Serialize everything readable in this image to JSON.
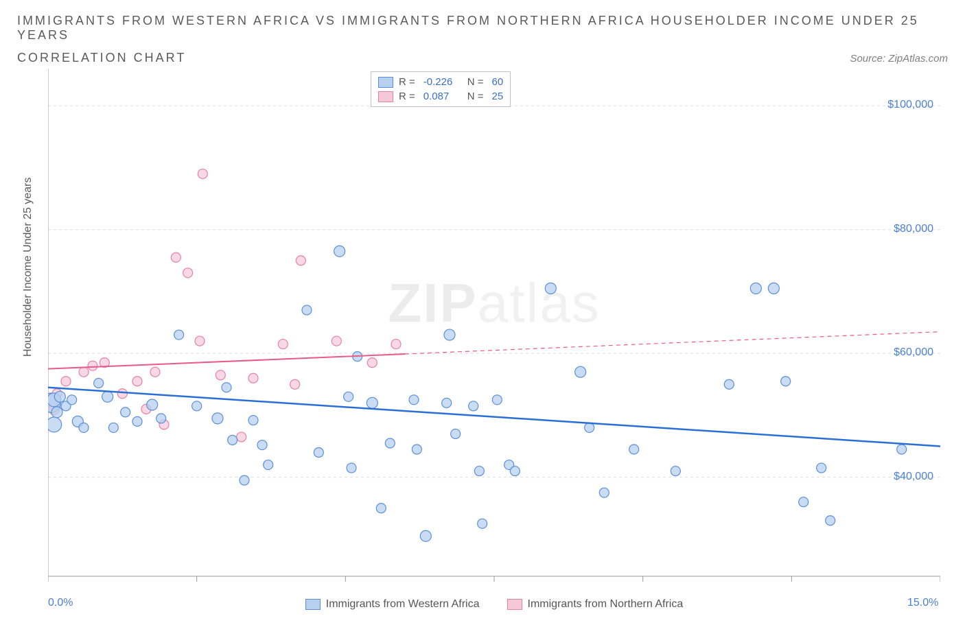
{
  "title_line1": "IMMIGRANTS FROM WESTERN AFRICA VS IMMIGRANTS FROM NORTHERN AFRICA HOUSEHOLDER INCOME UNDER 25 YEARS",
  "title_line2": "CORRELATION CHART",
  "source_label": "Source: ZipAtlas.com",
  "ylabel": "Householder Income Under 25 years",
  "watermark": {
    "bold": "ZIP",
    "rest": "atlas"
  },
  "chart": {
    "type": "scatter",
    "background_color": "#ffffff",
    "grid_color": "#dcdcdc",
    "axis_color": "#999999",
    "xlim": [
      0,
      15
    ],
    "ylim": [
      24000,
      106000
    ],
    "xtick_positions": [
      0,
      2.5,
      5,
      7.5,
      10,
      12.5,
      15
    ],
    "xtick_labels": {
      "0": "0.0%",
      "15": "15.0%"
    },
    "ytick_positions": [
      40000,
      60000,
      80000,
      100000
    ],
    "ytick_labels": [
      "$40,000",
      "$60,000",
      "$80,000",
      "$100,000"
    ],
    "gridline_dash": "4,4",
    "series": {
      "western": {
        "label": "Immigrants from Western Africa",
        "fill": "#b8d0f0",
        "stroke": "#5a8fd8",
        "stroke_width": 1.2,
        "opacity": 0.75,
        "line_color": "#2a6fd6",
        "line_width": 2.5,
        "line_solid_to_x": 15,
        "R": "-0.226",
        "N": "60",
        "regression": {
          "x1": 0,
          "y1": 54500,
          "x2": 15,
          "y2": 45000
        },
        "points": [
          {
            "x": 0.05,
            "y": 52000,
            "r": 14
          },
          {
            "x": 0.1,
            "y": 48500,
            "r": 11
          },
          {
            "x": 0.1,
            "y": 52500,
            "r": 10
          },
          {
            "x": 0.15,
            "y": 50500,
            "r": 8
          },
          {
            "x": 0.2,
            "y": 53000,
            "r": 8
          },
          {
            "x": 0.3,
            "y": 51500,
            "r": 7
          },
          {
            "x": 0.4,
            "y": 52500,
            "r": 7
          },
          {
            "x": 0.5,
            "y": 49000,
            "r": 8
          },
          {
            "x": 0.6,
            "y": 48000,
            "r": 7
          },
          {
            "x": 0.85,
            "y": 55200,
            "r": 7
          },
          {
            "x": 1.0,
            "y": 53000,
            "r": 8
          },
          {
            "x": 1.1,
            "y": 48000,
            "r": 7
          },
          {
            "x": 1.3,
            "y": 50500,
            "r": 7
          },
          {
            "x": 1.5,
            "y": 49000,
            "r": 7
          },
          {
            "x": 1.75,
            "y": 51700,
            "r": 8
          },
          {
            "x": 1.9,
            "y": 49500,
            "r": 7
          },
          {
            "x": 2.2,
            "y": 63000,
            "r": 7
          },
          {
            "x": 2.5,
            "y": 51500,
            "r": 7
          },
          {
            "x": 2.85,
            "y": 49500,
            "r": 8
          },
          {
            "x": 3.0,
            "y": 54500,
            "r": 7
          },
          {
            "x": 3.1,
            "y": 46000,
            "r": 7
          },
          {
            "x": 3.3,
            "y": 39500,
            "r": 7
          },
          {
            "x": 3.45,
            "y": 49200,
            "r": 7
          },
          {
            "x": 3.6,
            "y": 45200,
            "r": 7
          },
          {
            "x": 3.7,
            "y": 42000,
            "r": 7
          },
          {
            "x": 4.35,
            "y": 67000,
            "r": 7
          },
          {
            "x": 4.55,
            "y": 44000,
            "r": 7
          },
          {
            "x": 4.9,
            "y": 76500,
            "r": 8
          },
          {
            "x": 5.05,
            "y": 53000,
            "r": 7
          },
          {
            "x": 5.1,
            "y": 41500,
            "r": 7
          },
          {
            "x": 5.2,
            "y": 59500,
            "r": 7
          },
          {
            "x": 5.45,
            "y": 52000,
            "r": 8
          },
          {
            "x": 5.6,
            "y": 35000,
            "r": 7
          },
          {
            "x": 5.75,
            "y": 45500,
            "r": 7
          },
          {
            "x": 6.15,
            "y": 52500,
            "r": 7
          },
          {
            "x": 6.2,
            "y": 44500,
            "r": 7
          },
          {
            "x": 6.35,
            "y": 30500,
            "r": 8
          },
          {
            "x": 6.7,
            "y": 52000,
            "r": 7
          },
          {
            "x": 6.75,
            "y": 63000,
            "r": 8
          },
          {
            "x": 6.85,
            "y": 47000,
            "r": 7
          },
          {
            "x": 7.15,
            "y": 51500,
            "r": 7
          },
          {
            "x": 7.25,
            "y": 41000,
            "r": 7
          },
          {
            "x": 7.3,
            "y": 32500,
            "r": 7
          },
          {
            "x": 7.55,
            "y": 52500,
            "r": 7
          },
          {
            "x": 7.75,
            "y": 42000,
            "r": 7
          },
          {
            "x": 7.85,
            "y": 41000,
            "r": 7
          },
          {
            "x": 8.45,
            "y": 70500,
            "r": 8
          },
          {
            "x": 8.95,
            "y": 57000,
            "r": 8
          },
          {
            "x": 9.1,
            "y": 48000,
            "r": 7
          },
          {
            "x": 9.35,
            "y": 37500,
            "r": 7
          },
          {
            "x": 9.85,
            "y": 44500,
            "r": 7
          },
          {
            "x": 10.55,
            "y": 41000,
            "r": 7
          },
          {
            "x": 11.45,
            "y": 55000,
            "r": 7
          },
          {
            "x": 11.9,
            "y": 70500,
            "r": 8
          },
          {
            "x": 12.2,
            "y": 70500,
            "r": 8
          },
          {
            "x": 12.4,
            "y": 55500,
            "r": 7
          },
          {
            "x": 12.7,
            "y": 36000,
            "r": 7
          },
          {
            "x": 13.0,
            "y": 41500,
            "r": 7
          },
          {
            "x": 13.15,
            "y": 33000,
            "r": 7
          },
          {
            "x": 14.35,
            "y": 44500,
            "r": 7
          }
        ]
      },
      "northern": {
        "label": "Immigrants from Northern Africa",
        "fill": "#f5c8d8",
        "stroke": "#e681a5",
        "stroke_width": 1.2,
        "opacity": 0.7,
        "line_color": "#e85a8a",
        "line_width": 2,
        "line_solid_to_x": 6.0,
        "line_dash": "6,5",
        "R": "0.087",
        "N": "25",
        "regression": {
          "x1": 0,
          "y1": 57500,
          "x2": 15,
          "y2": 63500
        },
        "points": [
          {
            "x": 0.05,
            "y": 52500,
            "r": 10
          },
          {
            "x": 0.1,
            "y": 51000,
            "r": 8
          },
          {
            "x": 0.15,
            "y": 53500,
            "r": 7
          },
          {
            "x": 0.3,
            "y": 55500,
            "r": 7
          },
          {
            "x": 0.6,
            "y": 57000,
            "r": 7
          },
          {
            "x": 0.75,
            "y": 58000,
            "r": 7
          },
          {
            "x": 0.95,
            "y": 58500,
            "r": 7
          },
          {
            "x": 1.25,
            "y": 53500,
            "r": 7
          },
          {
            "x": 1.5,
            "y": 55500,
            "r": 7
          },
          {
            "x": 1.65,
            "y": 51000,
            "r": 7
          },
          {
            "x": 1.8,
            "y": 57000,
            "r": 7
          },
          {
            "x": 1.95,
            "y": 48500,
            "r": 7
          },
          {
            "x": 2.15,
            "y": 75500,
            "r": 7
          },
          {
            "x": 2.35,
            "y": 73000,
            "r": 7
          },
          {
            "x": 2.55,
            "y": 62000,
            "r": 7
          },
          {
            "x": 2.6,
            "y": 89000,
            "r": 7
          },
          {
            "x": 2.9,
            "y": 56500,
            "r": 7
          },
          {
            "x": 3.25,
            "y": 46500,
            "r": 7
          },
          {
            "x": 3.45,
            "y": 56000,
            "r": 7
          },
          {
            "x": 3.95,
            "y": 61500,
            "r": 7
          },
          {
            "x": 4.15,
            "y": 55000,
            "r": 7
          },
          {
            "x": 4.25,
            "y": 75000,
            "r": 7
          },
          {
            "x": 4.85,
            "y": 62000,
            "r": 7
          },
          {
            "x": 5.45,
            "y": 58500,
            "r": 7
          },
          {
            "x": 5.85,
            "y": 61500,
            "r": 7
          }
        ]
      }
    },
    "legend_top": {
      "rows": [
        {
          "series": "western",
          "r_label": "R =",
          "r_value": "-0.226",
          "n_label": "N =",
          "n_value": "60"
        },
        {
          "series": "northern",
          "r_label": "R =",
          "r_value": "0.087",
          "n_label": "N =",
          "n_value": "25"
        }
      ]
    }
  }
}
